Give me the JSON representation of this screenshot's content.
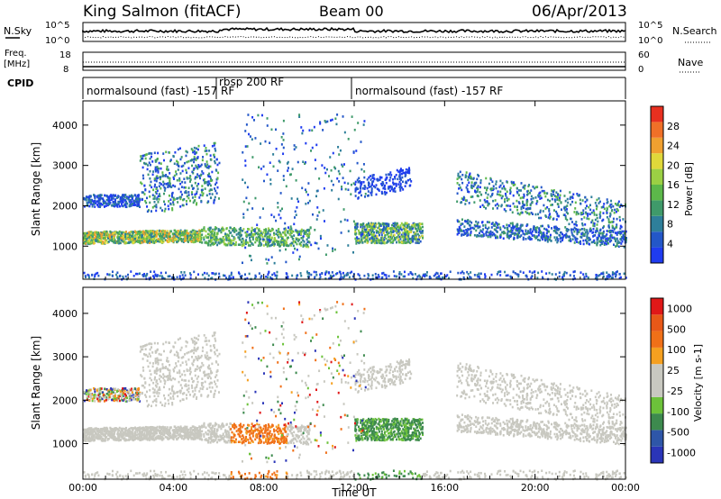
{
  "header": {
    "station": "King Salmon (fitACF)",
    "beam": "Beam 00",
    "date": "06/Apr/2013"
  },
  "top_panels": {
    "nsky_label": "N.Sky",
    "nsky_ticks": [
      "10^5",
      "10^0"
    ],
    "nsearch_label": "N.Search",
    "nsearch_ticks": [
      "10^5",
      "10^0"
    ],
    "freq_label_1": "Freq.",
    "freq_label_2": "[MHz]",
    "freq_ticks": [
      "18",
      "8"
    ],
    "nave_label": "Nave",
    "nave_ticks": [
      "60",
      "0"
    ],
    "cpid_label": "CPID",
    "cpid_segments": [
      {
        "text": "normalsound (fast) -157 RF",
        "start_hour": 0
      },
      {
        "text": "rbsp 200 RF",
        "start_hour": 5.9
      },
      {
        "text": "normalsound (fast) -157 RF",
        "start_hour": 12
      }
    ]
  },
  "chart_data": [
    {
      "type": "heatmap",
      "title": "",
      "xlabel": "Time UT",
      "ylabel": "Slant Range [km]",
      "x_ticks": [
        "00:00",
        "04:00",
        "08:00",
        "12:00",
        "16:00",
        "20:00",
        "00:00"
      ],
      "x_range_hours": [
        0,
        24
      ],
      "y_ticks": [
        "1000",
        "2000",
        "3000",
        "4000"
      ],
      "y_range_km": [
        180,
        4600
      ],
      "colorbar": {
        "label": "Power [dB]",
        "ticks": [
          "4",
          "8",
          "12",
          "16",
          "20",
          "24",
          "28"
        ],
        "range": [
          0,
          30
        ],
        "colors": [
          "#1f3cf0",
          "#2357c8",
          "#2e7f9a",
          "#3f9a6a",
          "#5cb84a",
          "#9bd044",
          "#e0d83a",
          "#f0a030",
          "#f07028",
          "#e83020"
        ]
      }
    },
    {
      "type": "heatmap",
      "title": "",
      "xlabel": "Time UT",
      "ylabel": "Slant Range [km]",
      "x_ticks": [
        "00:00",
        "04:00",
        "08:00",
        "12:00",
        "16:00",
        "20:00",
        "00:00"
      ],
      "x_range_hours": [
        0,
        24
      ],
      "y_ticks": [
        "1000",
        "2000",
        "3000",
        "4000"
      ],
      "y_range_km": [
        180,
        4600
      ],
      "colorbar": {
        "label": "Velocity [m s-1]",
        "ticks": [
          "1000",
          "500",
          "100",
          "25",
          "-25",
          "-100",
          "-500",
          "-1000"
        ],
        "colors": [
          "#2a35b8",
          "#2e56a8",
          "#3d8a4e",
          "#6cc23a",
          "#c8c8c0",
          "#c8c8c0",
          "#f5a020",
          "#f07018",
          "#e85818",
          "#e01818"
        ]
      }
    }
  ]
}
